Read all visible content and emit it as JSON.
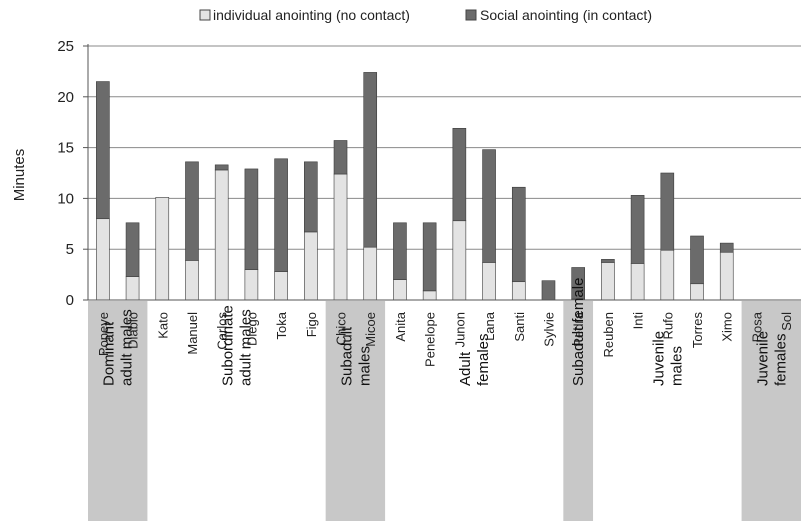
{
  "chart_data": {
    "type": "bar",
    "stacked": true,
    "ylabel": "Minutes",
    "ylim": [
      0,
      25
    ],
    "yticks": [
      0,
      5,
      10,
      15,
      20,
      25
    ],
    "grid": true,
    "legend_position": "top",
    "categories": [
      "Popeye",
      "Diablo",
      "Kato",
      "Manuel",
      "Carlos",
      "Diego",
      "Toka",
      "Figo",
      "Chico",
      "Micoe",
      "Anita",
      "Penelope",
      "Junon",
      "Lana",
      "Santi",
      "Sylvie",
      "Pedra",
      "Reuben",
      "Inti",
      "Rufo",
      "Torres",
      "Ximo",
      "Rosa",
      "Sol"
    ],
    "series": [
      {
        "name": "individual anointing (no contact)",
        "color": "#e3e3e3",
        "values": [
          8.0,
          2.3,
          10.1,
          3.9,
          12.8,
          3.0,
          2.8,
          6.7,
          12.4,
          5.2,
          2.0,
          0.9,
          7.8,
          3.7,
          1.8,
          0.0,
          0.1,
          3.7,
          3.6,
          4.9,
          1.6,
          4.7,
          0,
          0
        ]
      },
      {
        "name": "Social anointing (in contact)",
        "color": "#6b6b6b",
        "values": [
          13.5,
          5.3,
          0.0,
          9.7,
          0.5,
          9.9,
          11.1,
          6.9,
          3.3,
          17.2,
          5.6,
          6.7,
          9.1,
          11.1,
          9.3,
          1.9,
          3.1,
          0.3,
          6.7,
          7.6,
          4.7,
          0.9,
          0,
          0
        ]
      }
    ],
    "groups": [
      {
        "label": "Dominant adult males",
        "lines": [
          "Dominant",
          "adult males"
        ],
        "start": 0,
        "end": 1,
        "shaded": true
      },
      {
        "label": "Subordinate adult males",
        "lines": [
          "Subordinate",
          "adult males"
        ],
        "start": 2,
        "end": 7,
        "shaded": false
      },
      {
        "label": "Subadult males",
        "lines": [
          "Subadult",
          "males"
        ],
        "start": 8,
        "end": 9,
        "shaded": true
      },
      {
        "label": "Adult females",
        "lines": [
          "Adult",
          "females"
        ],
        "start": 10,
        "end": 15,
        "shaded": false
      },
      {
        "label": "Subadult female",
        "lines": [
          "Subadult female"
        ],
        "start": 16,
        "end": 16,
        "shaded": true
      },
      {
        "label": "Juvenile males",
        "lines": [
          "Juvenile",
          "males"
        ],
        "start": 17,
        "end": 21,
        "shaded": false
      },
      {
        "label": "Juvenile females",
        "lines": [
          "Juvenile",
          "females"
        ],
        "start": 22,
        "end": 23,
        "shaded": true
      }
    ]
  }
}
